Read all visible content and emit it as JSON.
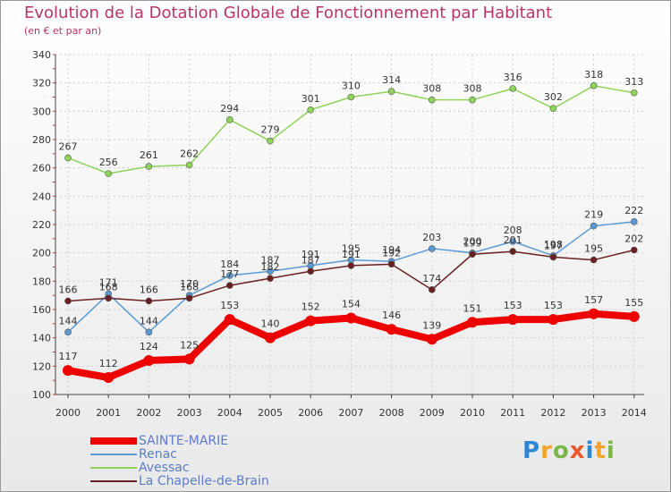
{
  "title": "Evolution de la Dotation Globale de Fonctionnement par Habitant",
  "subtitle": "(en € et par an)",
  "logo": "Proxiti",
  "chart_data": {
    "type": "line",
    "x": [
      "2000",
      "2001",
      "2002",
      "2003",
      "2004",
      "2005",
      "2006",
      "2007",
      "2008",
      "2009",
      "2010",
      "2011",
      "2012",
      "2013",
      "2014"
    ],
    "ylim": [
      100,
      340
    ],
    "yticks": [
      100,
      120,
      140,
      160,
      180,
      200,
      220,
      240,
      260,
      280,
      300,
      320,
      340
    ],
    "grid": true,
    "legend_position": "bottom-left",
    "series": [
      {
        "name": "SAINTE-MARIE",
        "color": "#ee0000",
        "values": [
          117,
          112,
          124,
          125,
          153,
          140,
          152,
          154,
          146,
          139,
          151,
          153,
          153,
          157,
          155
        ]
      },
      {
        "name": "Renac",
        "color": "#5b9bd5",
        "values": [
          144,
          171,
          144,
          170,
          184,
          187,
          191,
          195,
          194,
          203,
          200,
          208,
          198,
          219,
          222
        ]
      },
      {
        "name": "Avessac",
        "color": "#8fd45a",
        "values": [
          267,
          256,
          261,
          262,
          294,
          279,
          301,
          310,
          314,
          308,
          308,
          316,
          302,
          318,
          313
        ]
      },
      {
        "name": "La Chapelle-de-Brain",
        "color": "#6b1f1f",
        "values": [
          166,
          168,
          166,
          168,
          177,
          182,
          187,
          191,
          192,
          174,
          199,
          201,
          197,
          195,
          202
        ]
      }
    ]
  }
}
